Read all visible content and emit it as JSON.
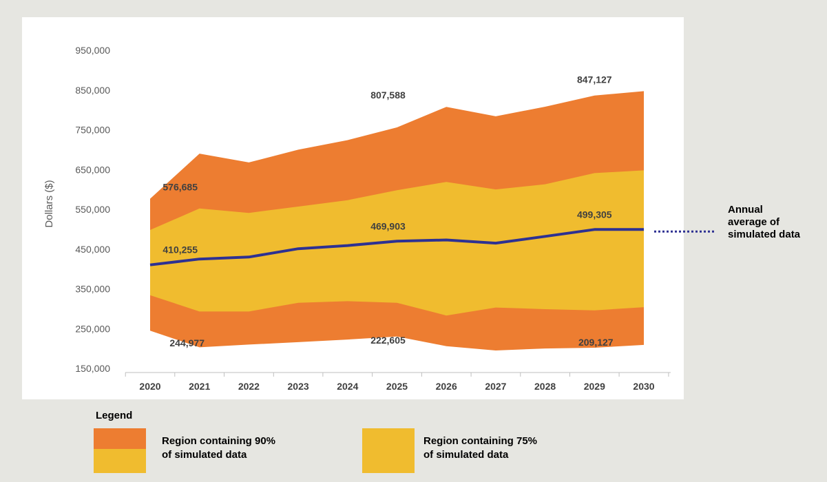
{
  "chart_data": {
    "type": "area",
    "ylabel": "Dollars ($)",
    "xlabel": "",
    "ylim": [
      150000,
      950000
    ],
    "yticks": [
      "950,000",
      "850,000",
      "750,000",
      "650,000",
      "550,000",
      "450,000",
      "350,000",
      "250,000",
      "150,000"
    ],
    "categories": [
      "2020",
      "2021",
      "2022",
      "2023",
      "2024",
      "2025",
      "2026",
      "2027",
      "2028",
      "2029",
      "2030"
    ],
    "series": [
      {
        "name": "Region containing 90% of simulated data",
        "upper": [
          576685,
          690000,
          668000,
          700000,
          724000,
          756000,
          807588,
          784000,
          808000,
          836000,
          847127
        ],
        "lower": [
          244977,
          203000,
          210000,
          216000,
          222605,
          230000,
          206000,
          195000,
          200000,
          202000,
          209127
        ]
      },
      {
        "name": "Region containing 75% of simulated data",
        "upper": [
          498000,
          552000,
          541000,
          557000,
          573000,
          598000,
          619000,
          600000,
          613000,
          641000,
          648000
        ],
        "lower": [
          334000,
          293000,
          293000,
          315000,
          319000,
          315000,
          283000,
          303000,
          299000,
          296000,
          304000
        ]
      },
      {
        "name": "Annual average of simulated data",
        "values": [
          410255,
          425000,
          430000,
          451000,
          459000,
          469903,
          473000,
          465000,
          482000,
          499305,
          499305
        ]
      }
    ],
    "data_labels": [
      {
        "text": "576,685",
        "x": "2021",
        "y": 576685,
        "anchor": "top-above"
      },
      {
        "text": "807,588",
        "x": "2025",
        "y": 807588,
        "anchor": "top-above"
      },
      {
        "text": "847,127",
        "x": "2029",
        "y": 847127,
        "anchor": "top-above"
      },
      {
        "text": "410,255",
        "x": "2021",
        "y": 410255,
        "anchor": "mean"
      },
      {
        "text": "469,903",
        "x": "2025",
        "y": 469903,
        "anchor": "mean"
      },
      {
        "text": "499,305",
        "x": "2029",
        "y": 499305,
        "anchor": "mean"
      },
      {
        "text": "244,977",
        "x": "2021",
        "y": 244977,
        "anchor": "low"
      },
      {
        "text": "222,605",
        "x": "2025",
        "y": 222605,
        "anchor": "low"
      },
      {
        "text": "209,127",
        "x": "2029",
        "y": 209127,
        "anchor": "low"
      }
    ],
    "legend_placement": "bottom",
    "grid": false,
    "colors": {
      "band90": "#ed7d31",
      "band75": "#f0bc2f",
      "mean": "#2e3192",
      "axis": "#bfbfbf"
    }
  },
  "annotation": "Annual average of simulated data",
  "legend": {
    "title": "Legend",
    "items": [
      {
        "label": "Region containing 90% of simulated data",
        "line1": "Region containing 90%",
        "line2": "of simulated data"
      },
      {
        "label": "Region containing 75% of simulated data",
        "line1": "Region containing 75%",
        "line2": "of simulated data"
      }
    ]
  }
}
